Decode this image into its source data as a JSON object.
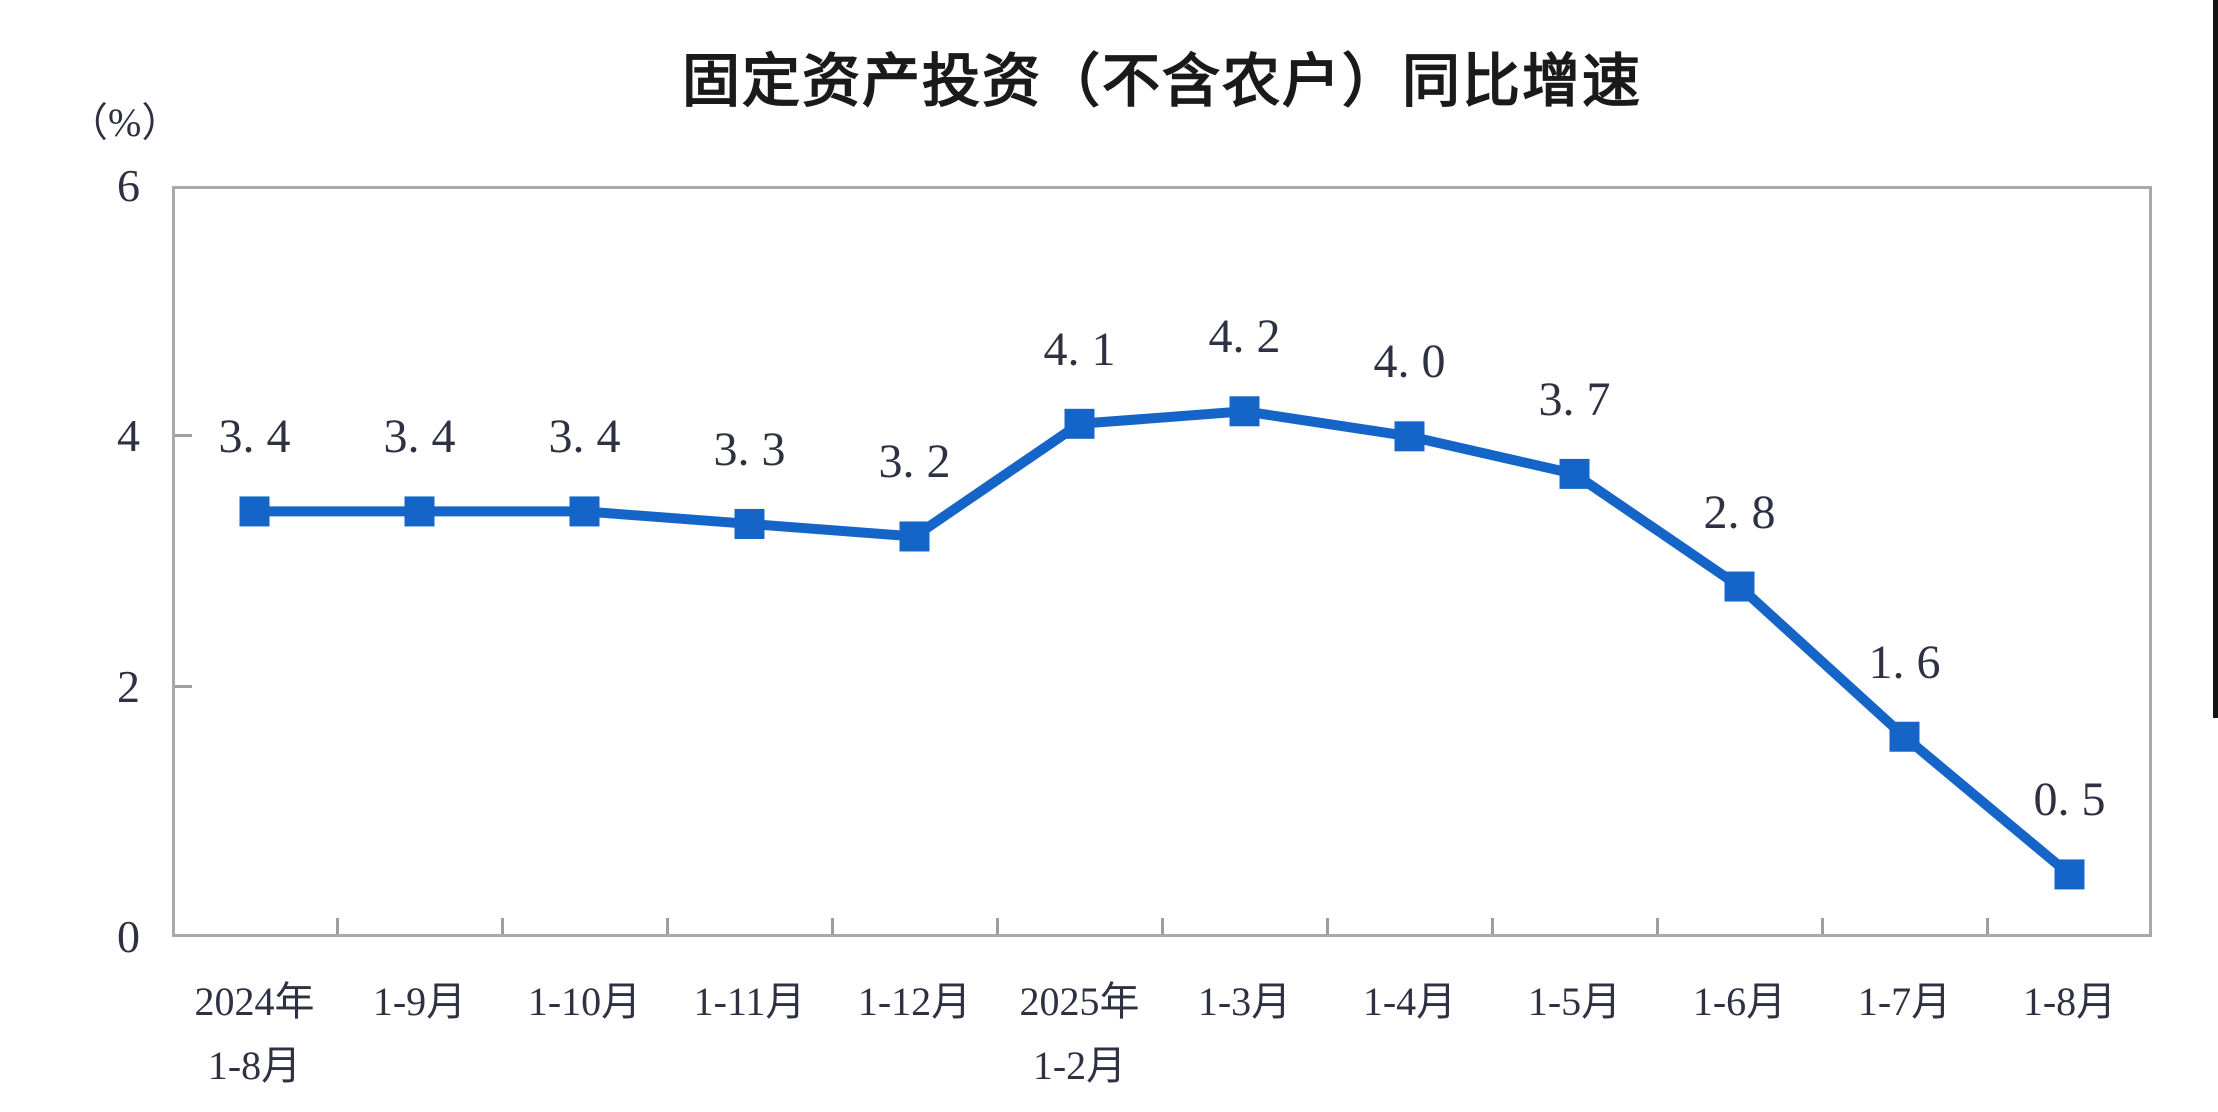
{
  "header": {
    "title": "固定资产投资（不含农户）同比增速"
  },
  "axes": {
    "unit_label": "（%）"
  },
  "chart_data": {
    "type": "line",
    "title": "固定资产投资（不含农户）同比增速",
    "ylabel": "（%）",
    "xlabel": "",
    "categories": [
      "2024年\n1-8月",
      "1-9月",
      "1-10月",
      "1-11月",
      "1-12月",
      "2025年\n1-2月",
      "1-3月",
      "1-4月",
      "1-5月",
      "1-6月",
      "1-7月",
      "1-8月"
    ],
    "values": [
      3.4,
      3.4,
      3.4,
      3.3,
      3.2,
      4.1,
      4.2,
      4.0,
      3.7,
      2.8,
      1.6,
      0.5
    ],
    "point_labels": [
      "3. 4",
      "3. 4",
      "3. 4",
      "3. 3",
      "3. 2",
      "4. 1",
      "4. 2",
      "4. 0",
      "3. 7",
      "2. 8",
      "1. 6",
      "0. 5"
    ],
    "ylim": [
      0,
      6
    ],
    "yticks": [
      0,
      2,
      4,
      6
    ],
    "grid": false,
    "legend": "none",
    "marker": "square",
    "colors": {
      "series": "#1565c8",
      "axis_border": "#a9a9a9",
      "tick": "#9e9e9e",
      "text": "#2e3142",
      "title_text": "#1a1a1a",
      "window_edge": "#141414"
    }
  }
}
